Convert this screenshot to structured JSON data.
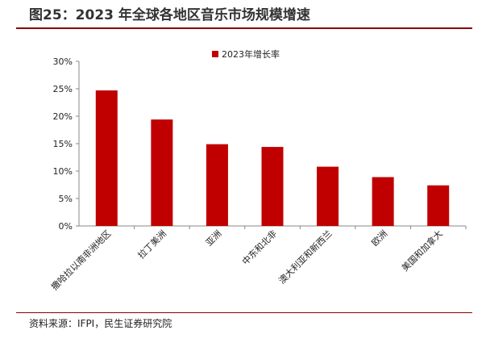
{
  "header": {
    "title": "图25：2023 年全球各地区音乐市场规模增速"
  },
  "footer": {
    "source": "资料来源：IFPI，民生证券研究院",
    "cut_text": "＿＿＿＿＿＿＿＿＿＿＿＿＿＿＿＿＿＿＿＿＿＿＿＿＿＿＿＿＿＿＿＿＿＿＿＿＿"
  },
  "colors": {
    "bar": "#c00000",
    "accent_rule": "#8a0000"
  },
  "chart_data": {
    "type": "bar",
    "categories": [
      "撒哈拉以南非洲地区",
      "拉丁美洲",
      "亚洲",
      "中东和北非",
      "澳大利亚和新西兰",
      "欧洲",
      "美国和加拿大"
    ],
    "series": [
      {
        "name": "2023年增长率",
        "values": [
          24.7,
          19.4,
          14.9,
          14.4,
          10.8,
          8.9,
          7.4
        ]
      }
    ],
    "y_ticks": [
      "0%",
      "5%",
      "10%",
      "15%",
      "20%",
      "25%",
      "30%"
    ],
    "ylim": [
      0,
      30
    ],
    "legend_position": "top-center",
    "grid": false
  }
}
